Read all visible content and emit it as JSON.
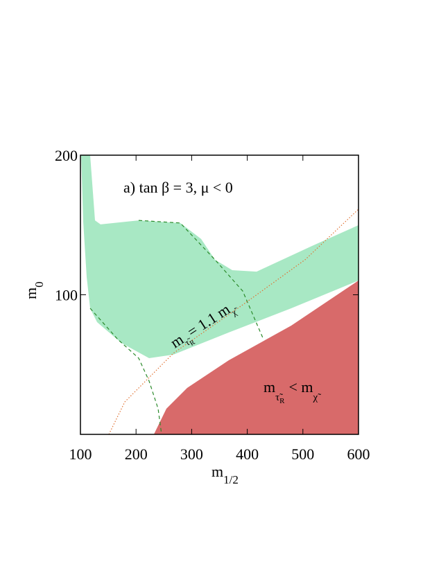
{
  "chart_data": {
    "type": "region",
    "annotation": "a) tan β = 3,  μ < 0",
    "x_label": "m",
    "x_label_sub": "1/2",
    "y_label": "m",
    "y_label_sub": "0",
    "line_label": [
      "m",
      "τ̃",
      "R",
      "= 1.1 m",
      "χ̃"
    ],
    "region_label": [
      "m",
      "τ̃",
      "R",
      "< m",
      "χ̃"
    ],
    "xlim": [
      100,
      600
    ],
    "ylim": [
      0,
      200
    ],
    "xticks": [
      100,
      200,
      300,
      400,
      500,
      600
    ],
    "yticks": [
      100,
      200
    ],
    "series": [
      {
        "kind": "area",
        "color": "#a8e8c4",
        "x": [
          101.2,
          105,
          111.2,
          117.5,
          129.9,
          173.6,
          223.4,
          267.1,
          366.8,
          479,
          600,
          600,
          516.5,
          416.7,
          373.1,
          341.9,
          317,
          279.6,
          204.7,
          136.2,
          126.2,
          117.5
        ],
        "values": [
          200,
          152.4,
          112.7,
          90.3,
          80.4,
          65.5,
          54.6,
          57.1,
          73,
          90.3,
          110.2,
          149.9,
          135,
          116.6,
          117.6,
          125.1,
          140,
          151.4,
          153.3,
          150.4,
          153.3,
          200
        ]
      },
      {
        "kind": "area",
        "color": "#d86a6a",
        "x": [
          232,
          254.6,
          292,
          366.8,
          479,
          600,
          600
        ],
        "values": [
          0,
          18.4,
          33.3,
          53.1,
          77.9,
          110.2,
          0
        ]
      },
      {
        "kind": "line",
        "style": "dashed",
        "color": "#2a8a2a",
        "x": [
          117.5,
          167.3,
          204.7,
          223.4,
          239.7,
          245.9
        ],
        "values": [
          90.3,
          68,
          54.6,
          38.2,
          18.4,
          0
        ]
      },
      {
        "kind": "line",
        "style": "dashed",
        "color": "#2a8a2a",
        "x": [
          204.7,
          279.6,
          341.9,
          391.8,
          429.2
        ],
        "values": [
          153.3,
          151.4,
          125.1,
          102.7,
          68
        ]
      },
      {
        "kind": "line",
        "style": "dotted",
        "color": "#e07030",
        "x": [
          151.1,
          179.8,
          267.1,
          391.8,
          504,
          600
        ],
        "values": [
          0,
          23.3,
          58.1,
          92.8,
          125.1,
          161.3
        ]
      }
    ]
  }
}
